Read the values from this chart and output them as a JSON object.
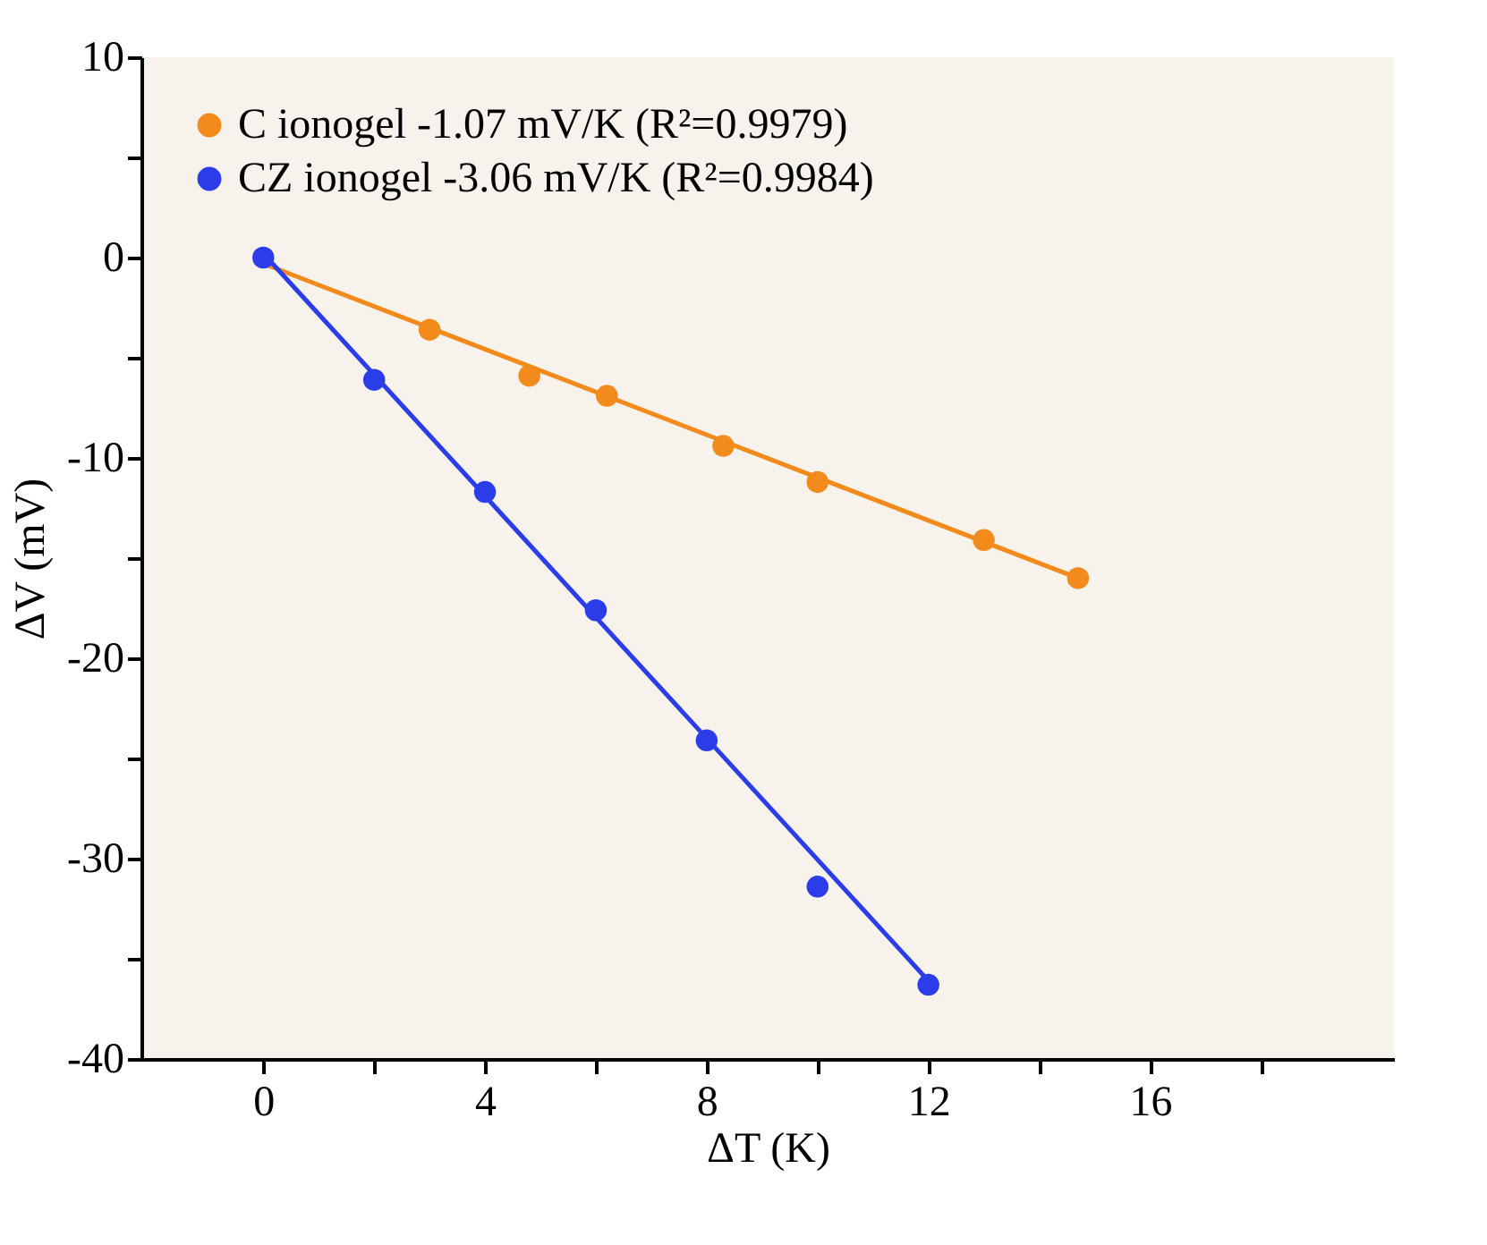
{
  "chart_data": {
    "type": "scatter",
    "xlabel": "ΔT (K)",
    "ylabel": "ΔV (mV)",
    "xlim": [
      -2.2,
      20.4
    ],
    "ylim": [
      -40,
      10
    ],
    "xticks": [
      0,
      {
        "value": 2,
        "label": null
      },
      4,
      {
        "value": 6,
        "label": null
      },
      8,
      {
        "value": 10,
        "label": null
      },
      12,
      {
        "value": 14,
        "label": null
      },
      16,
      {
        "value": 18,
        "label": null
      }
    ],
    "yticks": [
      -40,
      {
        "value": -35,
        "label": null
      },
      -30,
      {
        "value": -25,
        "label": null
      },
      -20,
      {
        "value": -15,
        "label": null
      },
      -10,
      {
        "value": -5,
        "label": null
      },
      0,
      {
        "value": 5,
        "label": null
      },
      10
    ],
    "legend": "top left",
    "marker": "circle",
    "grid": false,
    "series": [
      {
        "name": "C ionogel    -1.07 mV/K    (R²=0.9979)",
        "color": "#f28a1c",
        "x": [
          3,
          4.8,
          6.2,
          8.3,
          10,
          13,
          14.7
        ],
        "values": [
          -3.6,
          -5.9,
          -6.9,
          -9.4,
          -11.2,
          -14.1,
          -16.0
        ]
      },
      {
        "name": "CZ ionogel  -3.06 mV/K    (R²=0.9984)",
        "color": "#2a3de8",
        "x": [
          0,
          2,
          4,
          6,
          8,
          10,
          12
        ],
        "values": [
          0,
          -6.1,
          -11.7,
          -17.6,
          -24.1,
          -31.4,
          -36.3
        ]
      },
      {
        "type": "line",
        "marker": "none",
        "color": "#f28a1c",
        "x": [
          0,
          14.7
        ],
        "values": [
          -0.3,
          -16.0
        ]
      },
      {
        "type": "line",
        "marker": "none",
        "color": "#2a3de8",
        "x": [
          0,
          12
        ],
        "values": [
          0.2,
          -36.1
        ]
      }
    ]
  }
}
